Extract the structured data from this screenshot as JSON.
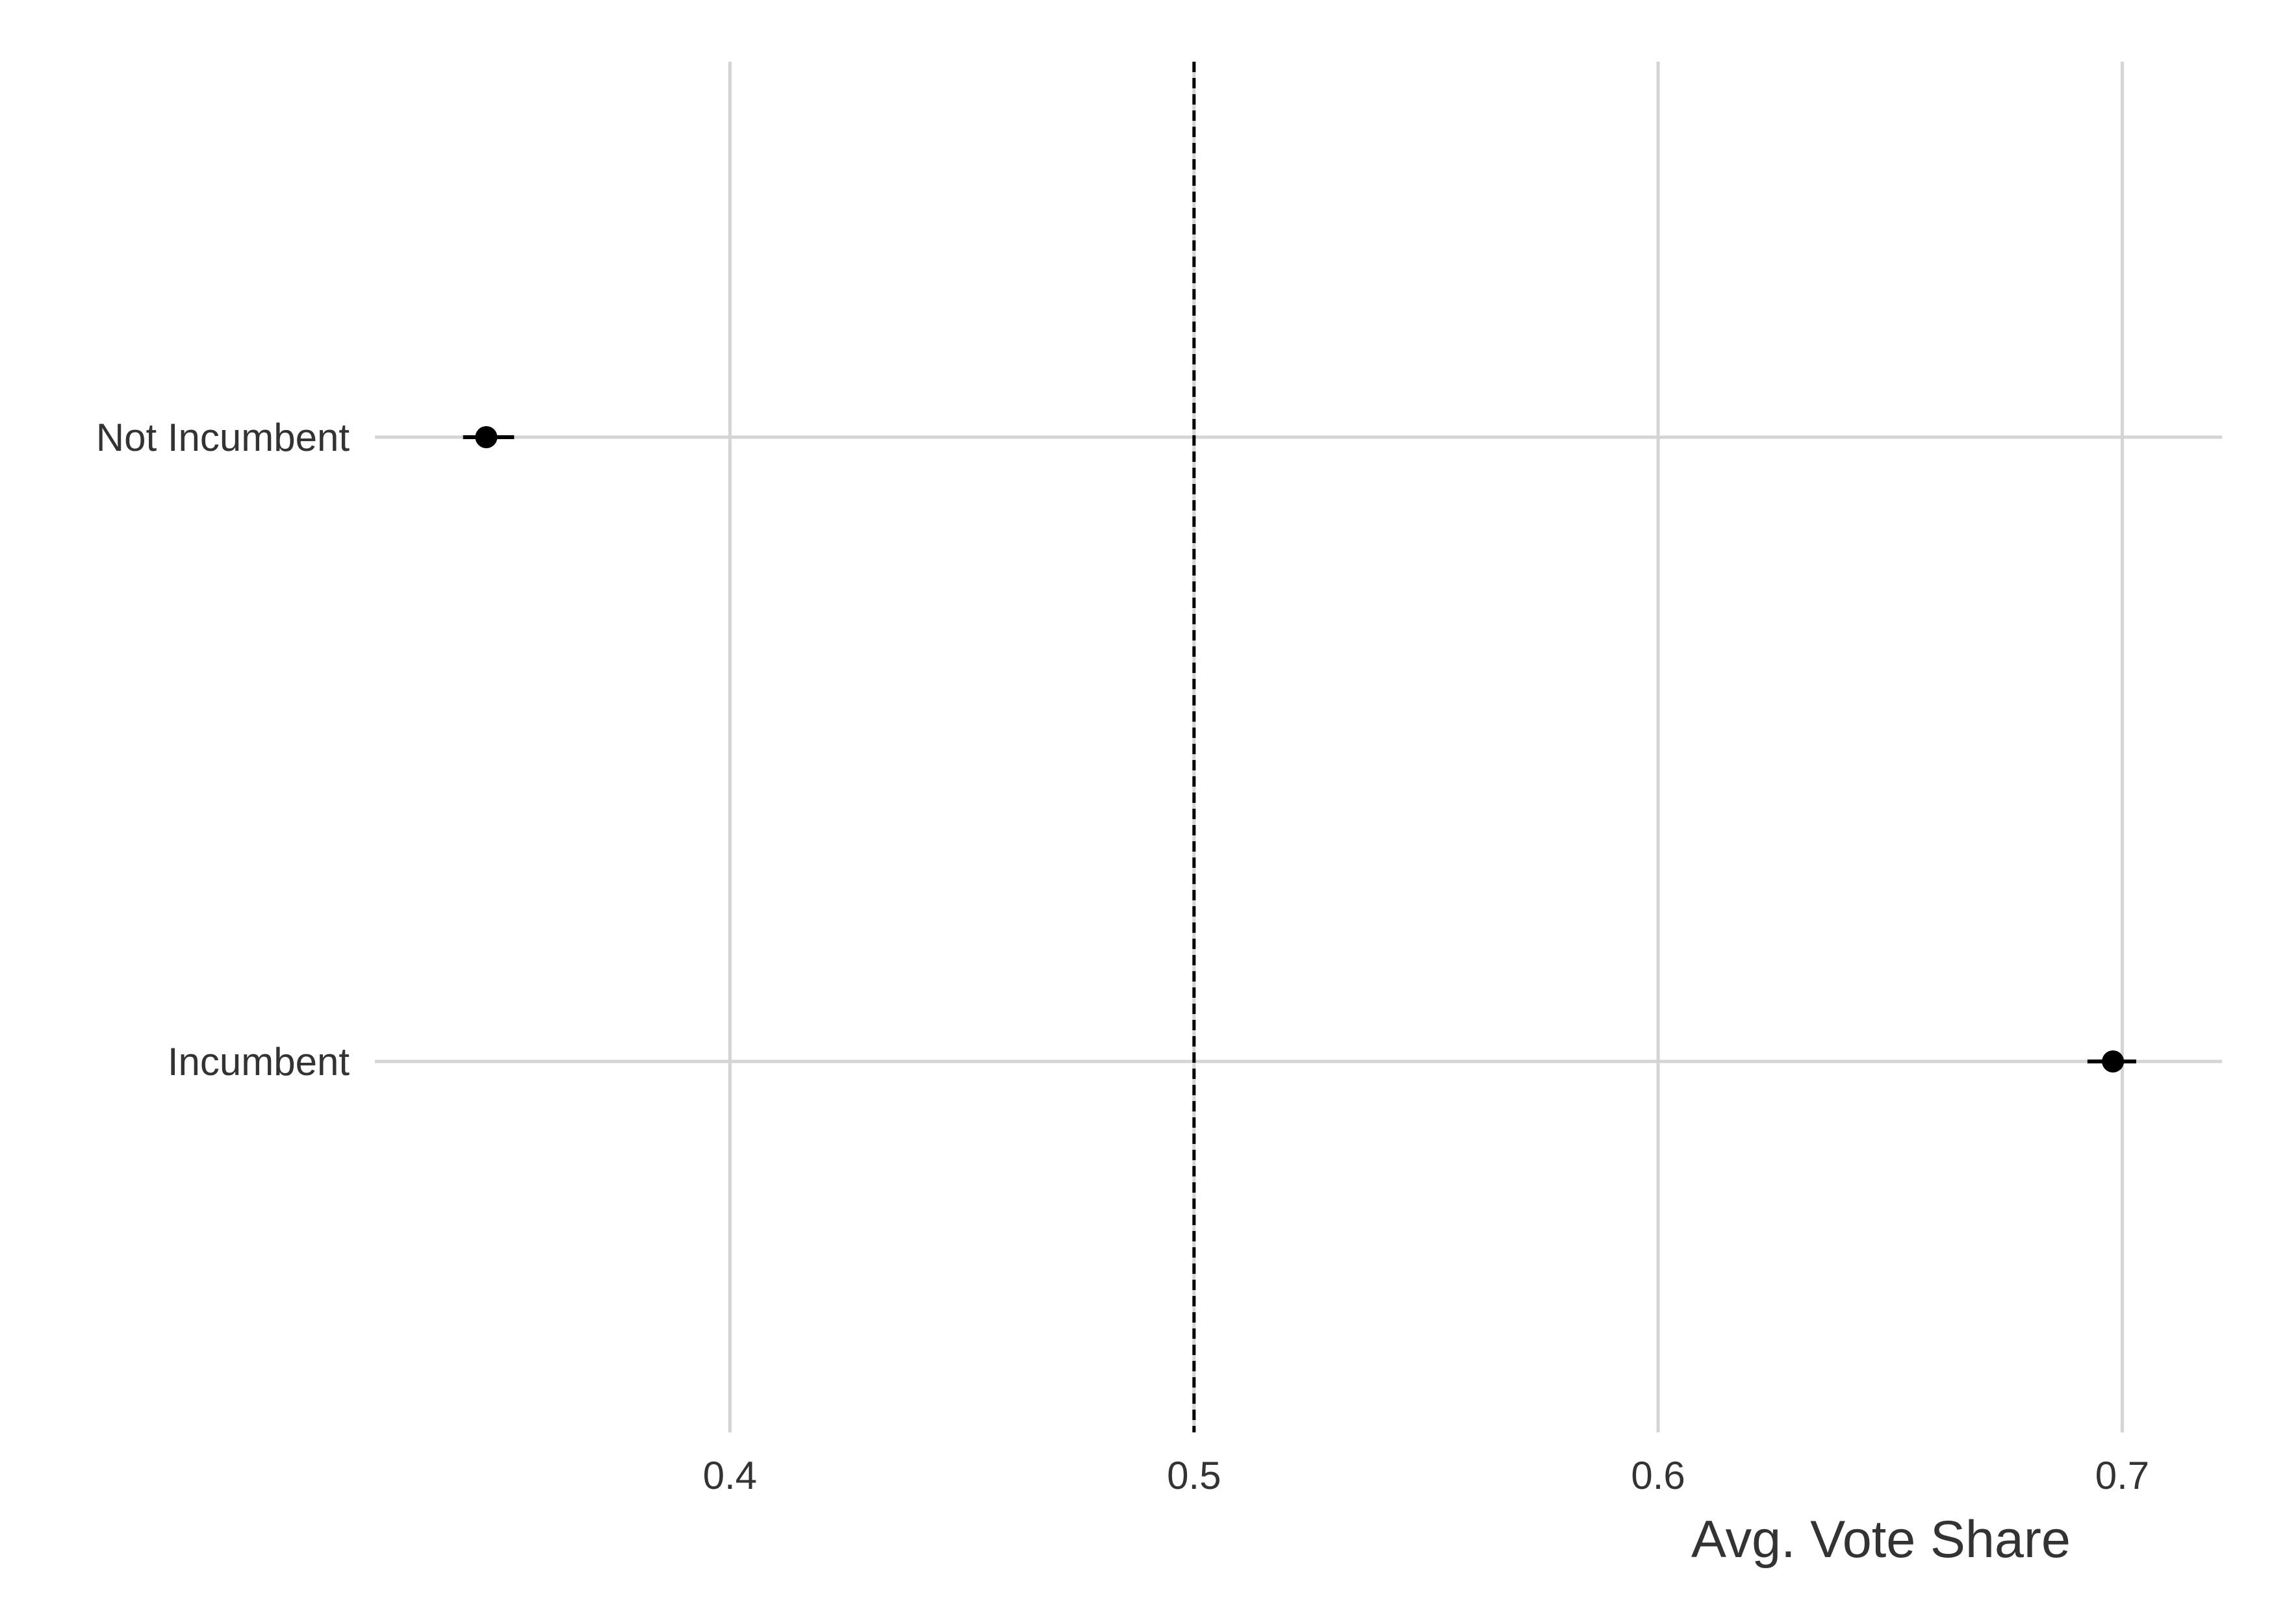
{
  "chart_data": {
    "type": "scatter",
    "orientation": "horizontal",
    "title": "",
    "xlabel": "Avg. Vote Share",
    "ylabel": "",
    "xlim": [
      0.3235,
      0.7215
    ],
    "x_ticks": [
      0.4,
      0.5,
      0.6,
      0.7
    ],
    "x_tick_labels": [
      "0.4",
      "0.5",
      "0.6",
      "0.7"
    ],
    "categories": [
      "Not Incumbent",
      "Incumbent"
    ],
    "points": [
      {
        "category": "Not Incumbent",
        "x": 0.3475,
        "lower": 0.3425,
        "upper": 0.3535
      },
      {
        "category": "Incumbent",
        "x": 0.698,
        "lower": 0.6925,
        "upper": 0.703
      }
    ],
    "reference_line": {
      "x": 0.5,
      "style": "dashed",
      "color": "#000000"
    },
    "grid": true,
    "legend": "none",
    "colors": {
      "grid": "#d4d4d4",
      "point": "#000000",
      "text": "#333333"
    }
  }
}
